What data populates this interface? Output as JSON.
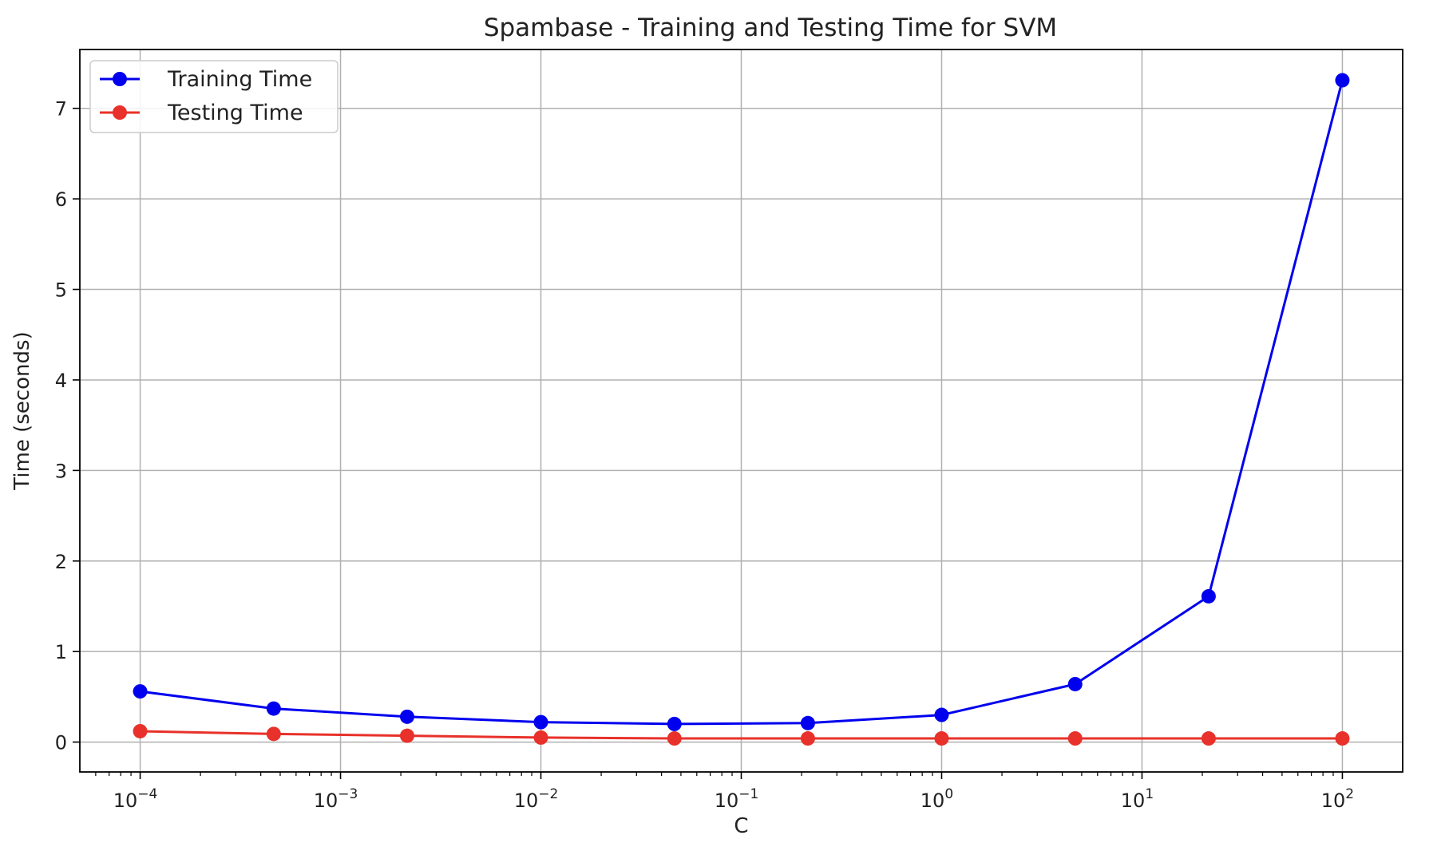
{
  "chart_data": {
    "type": "line",
    "title": "Spambase - Training and Testing Time for SVM",
    "xlabel": "C",
    "ylabel": "Time (seconds)",
    "xscale": "log",
    "xlim": [
      5e-05,
      200
    ],
    "ylim": [
      -0.33,
      7.65
    ],
    "grid": true,
    "legend_position": "top-left",
    "x": [
      0.0001,
      0.000464,
      0.00215,
      0.01,
      0.0464,
      0.215,
      1,
      4.64,
      21.5,
      100
    ],
    "x_ticks": [
      {
        "exp": -4,
        "base": "10",
        "sup": "−4"
      },
      {
        "exp": -3,
        "base": "10",
        "sup": "−3"
      },
      {
        "exp": -2,
        "base": "10",
        "sup": "−2"
      },
      {
        "exp": -1,
        "base": "10",
        "sup": "−1"
      },
      {
        "exp": 0,
        "base": "10",
        "sup": "0"
      },
      {
        "exp": 1,
        "base": "10",
        "sup": "1"
      },
      {
        "exp": 2,
        "base": "10",
        "sup": "2"
      }
    ],
    "y_ticks": [
      0,
      1,
      2,
      3,
      4,
      5,
      6,
      7
    ],
    "series": [
      {
        "name": "Training Time",
        "color": "#0000ee",
        "values": [
          0.56,
          0.37,
          0.28,
          0.22,
          0.2,
          0.21,
          0.3,
          0.64,
          1.61,
          7.31
        ]
      },
      {
        "name": "Testing Time",
        "color": "#e8312a",
        "values": [
          0.12,
          0.09,
          0.07,
          0.05,
          0.04,
          0.04,
          0.04,
          0.04,
          0.04,
          0.04
        ]
      }
    ]
  }
}
